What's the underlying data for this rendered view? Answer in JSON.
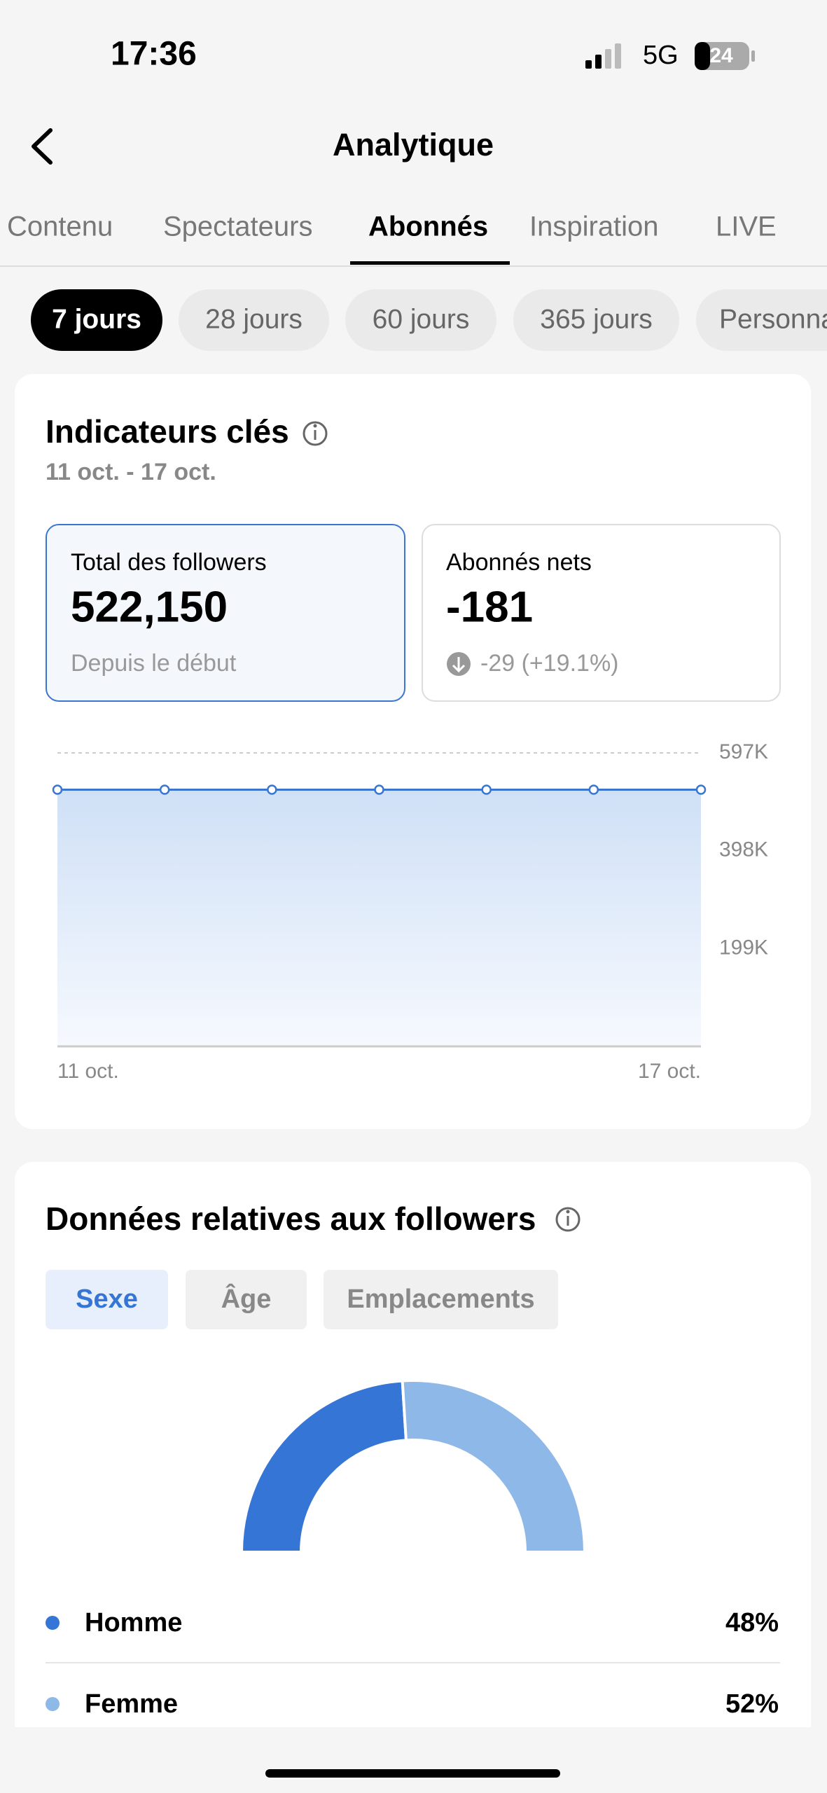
{
  "status": {
    "time": "17:36",
    "network": "5G",
    "battery": "24"
  },
  "header": {
    "title": "Analytique"
  },
  "tabs": [
    "Contenu",
    "Spectateurs",
    "Abonnés",
    "Inspiration",
    "LIVE"
  ],
  "periods": [
    "7 jours",
    "28 jours",
    "60 jours",
    "365 jours",
    "Personnalisé"
  ],
  "indicators": {
    "title": "Indicateurs clés",
    "range": "11 oct. - 17 oct.",
    "cards": [
      {
        "label": "Total des followers",
        "value": "522,150",
        "note": "Depuis le début"
      },
      {
        "label": "Abonnés nets",
        "value": "-181",
        "note": "-29 (+19.1%)"
      }
    ],
    "chart_data": {
      "type": "line",
      "categories": [
        "11 oct.",
        null,
        null,
        null,
        null,
        null,
        "17 oct."
      ],
      "values": [
        522150,
        522150,
        522150,
        522150,
        522150,
        522150,
        522150
      ],
      "color": "#3a76d0",
      "ylim": [
        0,
        597000
      ],
      "yticks": [
        {
          "value": 199000,
          "label": "199K"
        },
        {
          "value": 398000,
          "label": "398K"
        },
        {
          "value": 597000,
          "label": "597K"
        }
      ],
      "grid": true
    }
  },
  "followers": {
    "title": "Données relatives aux followers",
    "tabs": [
      "Sexe",
      "Âge",
      "Emplacements"
    ],
    "chart_data": {
      "type": "pie",
      "categories": [
        "Homme",
        "Femme"
      ],
      "values": [
        48,
        52
      ],
      "value_labels": [
        "48%",
        "52%"
      ],
      "colors": [
        "#3575d5",
        "#8db8e8"
      ]
    }
  }
}
